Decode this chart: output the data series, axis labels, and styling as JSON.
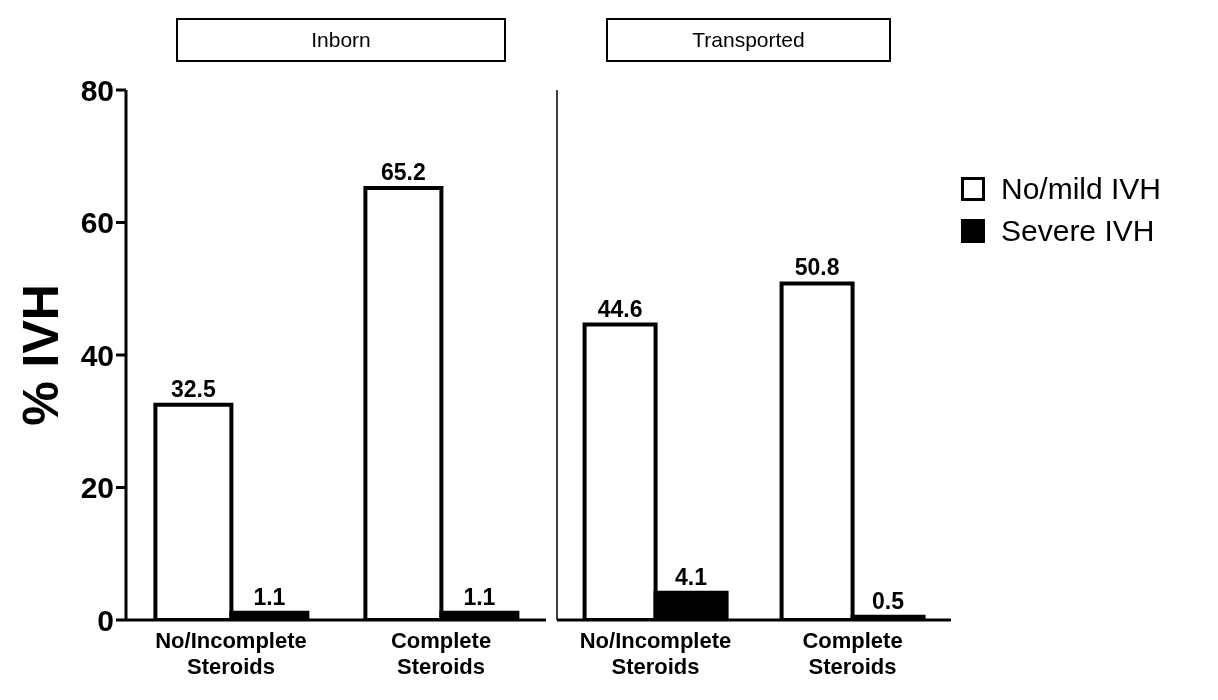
{
  "chart_data": [
    {
      "type": "bar",
      "title": "Inborn",
      "ylabel": "% IVH",
      "categories": [
        "No/Incomplete Steroids",
        "Complete Steroids"
      ],
      "ylim": [
        0,
        80
      ],
      "yticks": [
        0,
        20,
        40,
        60,
        80
      ],
      "grid": false,
      "data_labels": true,
      "series": [
        {
          "color": "#ffffff",
          "values": [
            32.5,
            65.2
          ]
        },
        {
          "color": "#000000",
          "values": [
            1.1,
            1.1
          ]
        }
      ]
    },
    {
      "type": "bar",
      "title": "Transported",
      "categories": [
        "No/Incomplete Steroids",
        "Complete Steroids"
      ],
      "ylim": [
        0,
        80
      ],
      "yticks": [
        0,
        20,
        40,
        60,
        80
      ],
      "tick_labels": "x",
      "grid": false,
      "data_labels": true,
      "legend": "right",
      "series": [
        {
          "name": "No/mild IVH",
          "color": "#ffffff",
          "values": [
            44.6,
            50.8
          ]
        },
        {
          "name": "Severe IVH",
          "color": "#000000",
          "values": [
            4.1,
            0.5
          ]
        }
      ]
    }
  ]
}
